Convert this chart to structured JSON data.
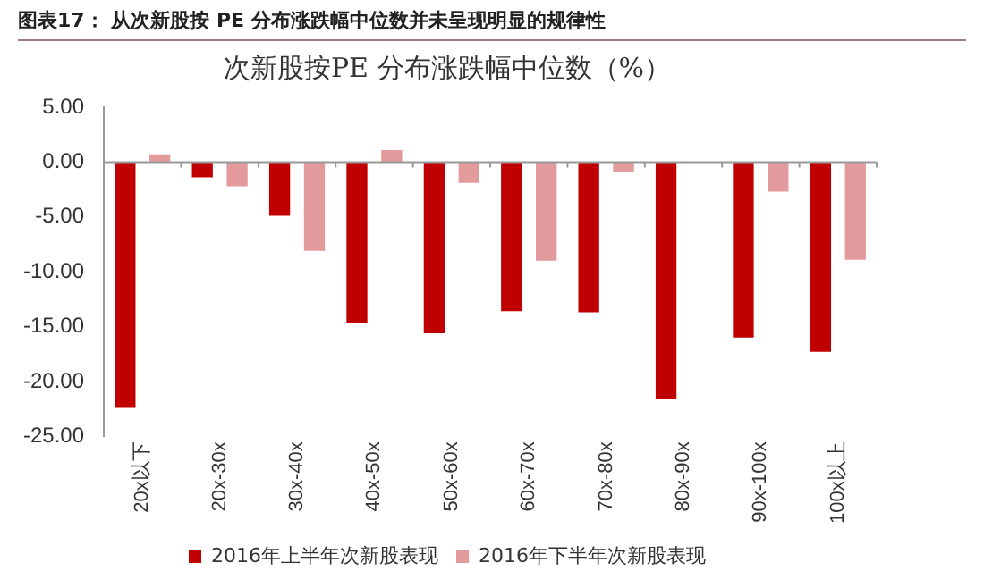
{
  "chart_data": {
    "type": "bar",
    "title": "图表17： 从次新股按 PE 分布涨跌幅中位数并未呈现明显的规律性",
    "subtitle": "次新股按PE 分布涨跌幅中位数（%）",
    "categories": [
      "20x以下",
      "20x-30x",
      "30x-40x",
      "40x-50x",
      "50x-60x",
      "60x-70x",
      "70x-80x",
      "80x-90x",
      "90x-100x",
      "100x以上"
    ],
    "series": [
      {
        "name": "2016年上半年次新股表现",
        "color": "#c00000",
        "values": [
          -22.4,
          -1.4,
          -4.9,
          -14.7,
          -15.6,
          -13.6,
          -13.7,
          -21.6,
          -16.0,
          -17.3
        ]
      },
      {
        "name": "2016年下半年次新股表现",
        "color": "#e39a9c",
        "values": [
          0.7,
          -2.2,
          -8.1,
          1.1,
          -1.9,
          -9.0,
          -0.9,
          null,
          -2.7,
          -8.9
        ]
      }
    ],
    "ylim": [
      -25,
      5
    ],
    "yticks": [
      {
        "value": 5,
        "label": "5.00"
      },
      {
        "value": 0,
        "label": "0.00"
      },
      {
        "value": -5,
        "label": "-5.00"
      },
      {
        "value": -10,
        "label": "-10.00"
      },
      {
        "value": -15,
        "label": "-15.00"
      },
      {
        "value": -20,
        "label": "-20.00"
      },
      {
        "value": -25,
        "label": "-25.00"
      }
    ],
    "ref_lines": [
      {
        "axis": "y",
        "value": 0,
        "color": "#999999"
      }
    ],
    "grid": false,
    "legend": "bottom"
  }
}
